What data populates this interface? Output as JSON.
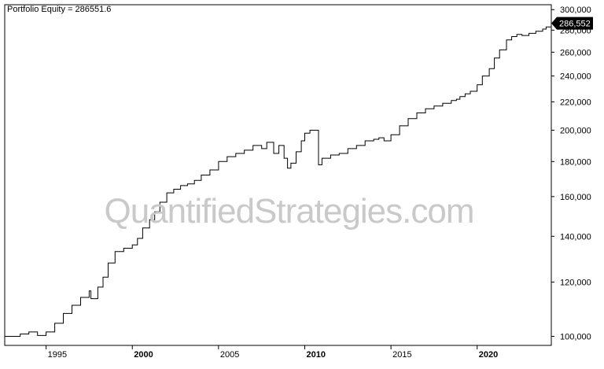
{
  "chart_data": {
    "type": "line",
    "title": "Portfolio Equity = 286551.6",
    "xlabel": "",
    "ylabel": "",
    "y_scale": "log",
    "ylim": [
      97000,
      305000
    ],
    "xlim": [
      1992.6,
      2024.3
    ],
    "grid": false,
    "legend": "none",
    "last_value_label": "286,552",
    "watermark": "QuantifiedStrategies.com",
    "y_ticks": [
      {
        "value": 100000,
        "label": "100,000"
      },
      {
        "value": 120000,
        "label": "120,000"
      },
      {
        "value": 140000,
        "label": "140,000"
      },
      {
        "value": 160000,
        "label": "160,000"
      },
      {
        "value": 180000,
        "label": "180,000"
      },
      {
        "value": 200000,
        "label": "200,000"
      },
      {
        "value": 220000,
        "label": "220,000"
      },
      {
        "value": 240000,
        "label": "240,000"
      },
      {
        "value": 260000,
        "label": "260,000"
      },
      {
        "value": 280000,
        "label": "280,000"
      },
      {
        "value": 300000,
        "label": "300,000"
      }
    ],
    "x_ticks": [
      {
        "value": 1995,
        "label": "1995",
        "bold": false
      },
      {
        "value": 2000,
        "label": "2000",
        "bold": true
      },
      {
        "value": 2005,
        "label": "2005",
        "bold": false
      },
      {
        "value": 2010,
        "label": "2010",
        "bold": true
      },
      {
        "value": 2015,
        "label": "2015",
        "bold": false
      },
      {
        "value": 2020,
        "label": "2020",
        "bold": true
      }
    ],
    "series": [
      {
        "color": "#000000",
        "x": [
          1992.6,
          1993.5,
          1994.0,
          1994.5,
          1995.0,
          1995.5,
          1996.0,
          1996.5,
          1997.0,
          1997.5,
          1997.6,
          1998.0,
          1998.3,
          1998.6,
          1999.0,
          1999.5,
          2000.0,
          2000.3,
          2000.6,
          2001.0,
          2001.3,
          2001.6,
          2002.0,
          2002.4,
          2002.8,
          2003.2,
          2003.6,
          2004.0,
          2004.5,
          2005.0,
          2005.5,
          2006.0,
          2006.5,
          2007.0,
          2007.5,
          2007.8,
          2008.2,
          2008.5,
          2008.8,
          2009.0,
          2009.2,
          2009.5,
          2009.8,
          2010.0,
          2010.3,
          2010.7,
          2010.8,
          2011.0,
          2011.5,
          2012.0,
          2012.5,
          2013.0,
          2013.5,
          2014.0,
          2014.3,
          2014.6,
          2015.0,
          2015.5,
          2016.0,
          2016.5,
          2017.0,
          2017.5,
          2018.0,
          2018.5,
          2018.8,
          2019.0,
          2019.3,
          2019.6,
          2020.0,
          2020.3,
          2020.7,
          2021.0,
          2021.3,
          2021.7,
          2022.0,
          2022.3,
          2022.6,
          2023.0,
          2023.4,
          2023.8,
          2024.0,
          2024.3
        ],
        "y": [
          100000,
          100800,
          101500,
          100300,
          101500,
          104500,
          108000,
          111000,
          114000,
          116500,
          113500,
          118000,
          122000,
          128000,
          133000,
          134500,
          136000,
          139000,
          144000,
          148000,
          152000,
          157000,
          162000,
          164000,
          166000,
          167000,
          169000,
          172000,
          175000,
          180000,
          183000,
          185000,
          187000,
          190000,
          188000,
          192000,
          185000,
          190000,
          182000,
          176000,
          179000,
          186000,
          193000,
          198000,
          200000,
          200000,
          178000,
          182000,
          184000,
          185000,
          188000,
          190000,
          193000,
          194000,
          195000,
          193000,
          197000,
          203000,
          208000,
          212000,
          215000,
          217000,
          219000,
          221000,
          222000,
          224000,
          226000,
          228000,
          233000,
          240000,
          246000,
          255000,
          262000,
          271000,
          274000,
          276000,
          275000,
          277000,
          279000,
          281000,
          283000,
          286552
        ]
      }
    ]
  }
}
